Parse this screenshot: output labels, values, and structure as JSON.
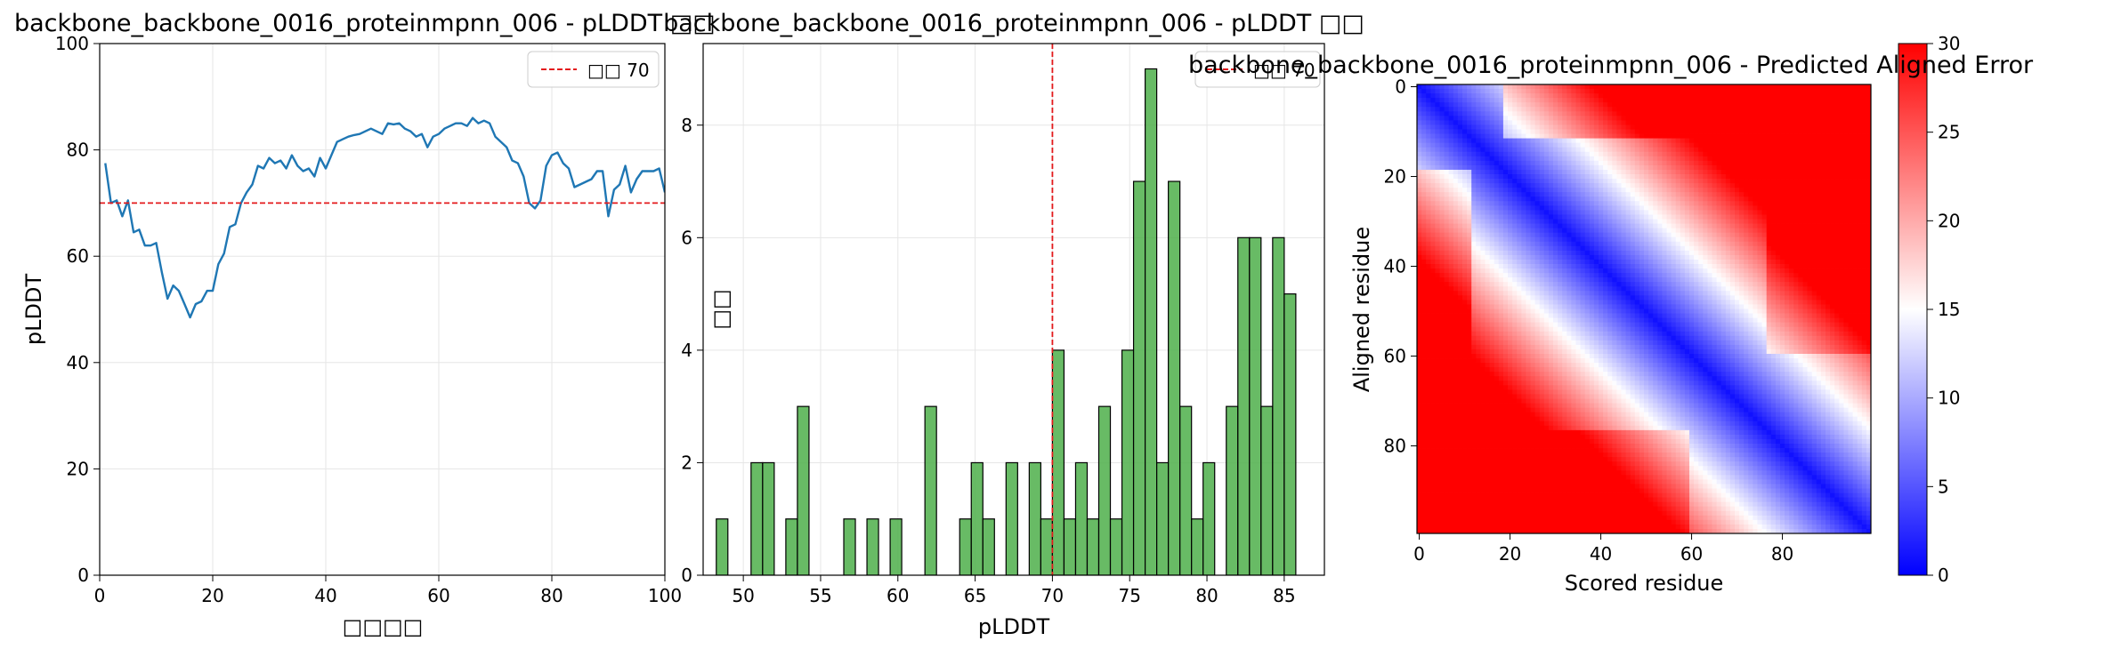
{
  "figure": {
    "note_glyph": "□□"
  },
  "chart_data": [
    {
      "type": "line",
      "title": "backbone_backbone_0016_proteinmpnn_006 - pLDDT □□",
      "xlabel": "□□□□",
      "ylabel": "pLDDT",
      "xlim": [
        0,
        100
      ],
      "ylim": [
        0,
        100
      ],
      "xticks": [
        0,
        20,
        40,
        60,
        80,
        100
      ],
      "yticks": [
        0,
        20,
        40,
        60,
        80,
        100
      ],
      "grid": true,
      "legend_position": "top-right",
      "threshold": {
        "value": 70,
        "label": "□□ 70",
        "color": "#e31a1c"
      },
      "series": [
        {
          "color": "#1f77b4",
          "x": [
            1,
            2,
            3,
            4,
            5,
            6,
            7,
            8,
            9,
            10,
            11,
            12,
            13,
            14,
            15,
            16,
            17,
            18,
            19,
            20,
            21,
            22,
            23,
            24,
            25,
            26,
            27,
            28,
            29,
            30,
            31,
            32,
            33,
            34,
            35,
            36,
            37,
            38,
            39,
            40,
            41,
            42,
            43,
            44,
            45,
            46,
            47,
            48,
            49,
            50,
            51,
            52,
            53,
            54,
            55,
            56,
            57,
            58,
            59,
            60,
            61,
            62,
            63,
            64,
            65,
            66,
            67,
            68,
            69,
            70,
            71,
            72,
            73,
            74,
            75,
            76,
            77,
            78,
            79,
            80,
            81,
            82,
            83,
            84,
            85,
            86,
            87,
            88,
            89,
            90,
            91,
            92,
            93,
            94,
            95,
            96,
            97,
            98,
            99,
            100
          ],
          "y": [
            77.5,
            70.0,
            70.5,
            67.5,
            70.5,
            64.5,
            65.0,
            62.0,
            62.0,
            62.5,
            57.0,
            52.0,
            54.5,
            53.5,
            51.0,
            48.5,
            51.0,
            51.5,
            53.5,
            53.5,
            58.5,
            60.5,
            65.5,
            66.0,
            70.0,
            72.0,
            73.5,
            77.0,
            76.5,
            78.5,
            77.5,
            78.0,
            76.5,
            79.0,
            77.0,
            76.0,
            76.5,
            75.0,
            78.5,
            76.5,
            79.0,
            81.5,
            82.0,
            82.5,
            82.8,
            83.0,
            83.5,
            84.0,
            83.5,
            83.0,
            85.0,
            84.8,
            85.0,
            84.0,
            83.5,
            82.5,
            83.0,
            80.5,
            82.5,
            83.0,
            84.0,
            84.5,
            85.0,
            85.0,
            84.5,
            86.0,
            85.0,
            85.5,
            85.0,
            82.5,
            81.5,
            80.5,
            78.0,
            77.5,
            75.0,
            70.0,
            69.0,
            70.5,
            77.0,
            79.0,
            79.5,
            77.5,
            76.5,
            73.0,
            73.5,
            74.0,
            74.5,
            76.0,
            76.0,
            67.5,
            72.5,
            73.5,
            77.0,
            72.0,
            74.5,
            76.0,
            76.0,
            76.0,
            76.5,
            72.0
          ]
        }
      ]
    },
    {
      "type": "bar",
      "title": "backbone_backbone_0016_proteinmpnn_006 - pLDDT □□",
      "xlabel": "pLDDT",
      "ylabel": "□□",
      "xlim": [
        47.4,
        87.6
      ],
      "ylim": [
        0,
        9.45
      ],
      "xticks": [
        50,
        55,
        60,
        65,
        70,
        75,
        80,
        85
      ],
      "yticks": [
        0,
        2,
        4,
        6,
        8
      ],
      "grid": true,
      "legend_position": "top-right",
      "bar_color": "#4daf4a",
      "bin_start": 48.25,
      "bin_width": 0.75,
      "counts": [
        1,
        0,
        0,
        2,
        2,
        0,
        1,
        3,
        0,
        0,
        0,
        1,
        0,
        1,
        0,
        1,
        0,
        0,
        3,
        0,
        0,
        1,
        2,
        1,
        0,
        2,
        0,
        2,
        1,
        4,
        1,
        2,
        1,
        3,
        1,
        4,
        7,
        9,
        2,
        7,
        3,
        1,
        2,
        0,
        3,
        6,
        6,
        3,
        6,
        5
      ],
      "threshold": {
        "value": 70,
        "label": "□□ 70",
        "color": "#e31a1c"
      }
    },
    {
      "type": "heatmap",
      "title": "backbone_backbone_0016_proteinmpnn_006 - Predicted Aligned Error",
      "xlabel": "Scored residue",
      "ylabel": "Aligned residue",
      "size": 100,
      "xticks": [
        0,
        20,
        40,
        60,
        80
      ],
      "yticks": [
        0,
        20,
        40,
        60,
        80
      ],
      "colormap": "bwr",
      "color_range": [
        0,
        30
      ],
      "colorbar_ticks": [
        0,
        5,
        10,
        15,
        20,
        25,
        30
      ]
    }
  ]
}
